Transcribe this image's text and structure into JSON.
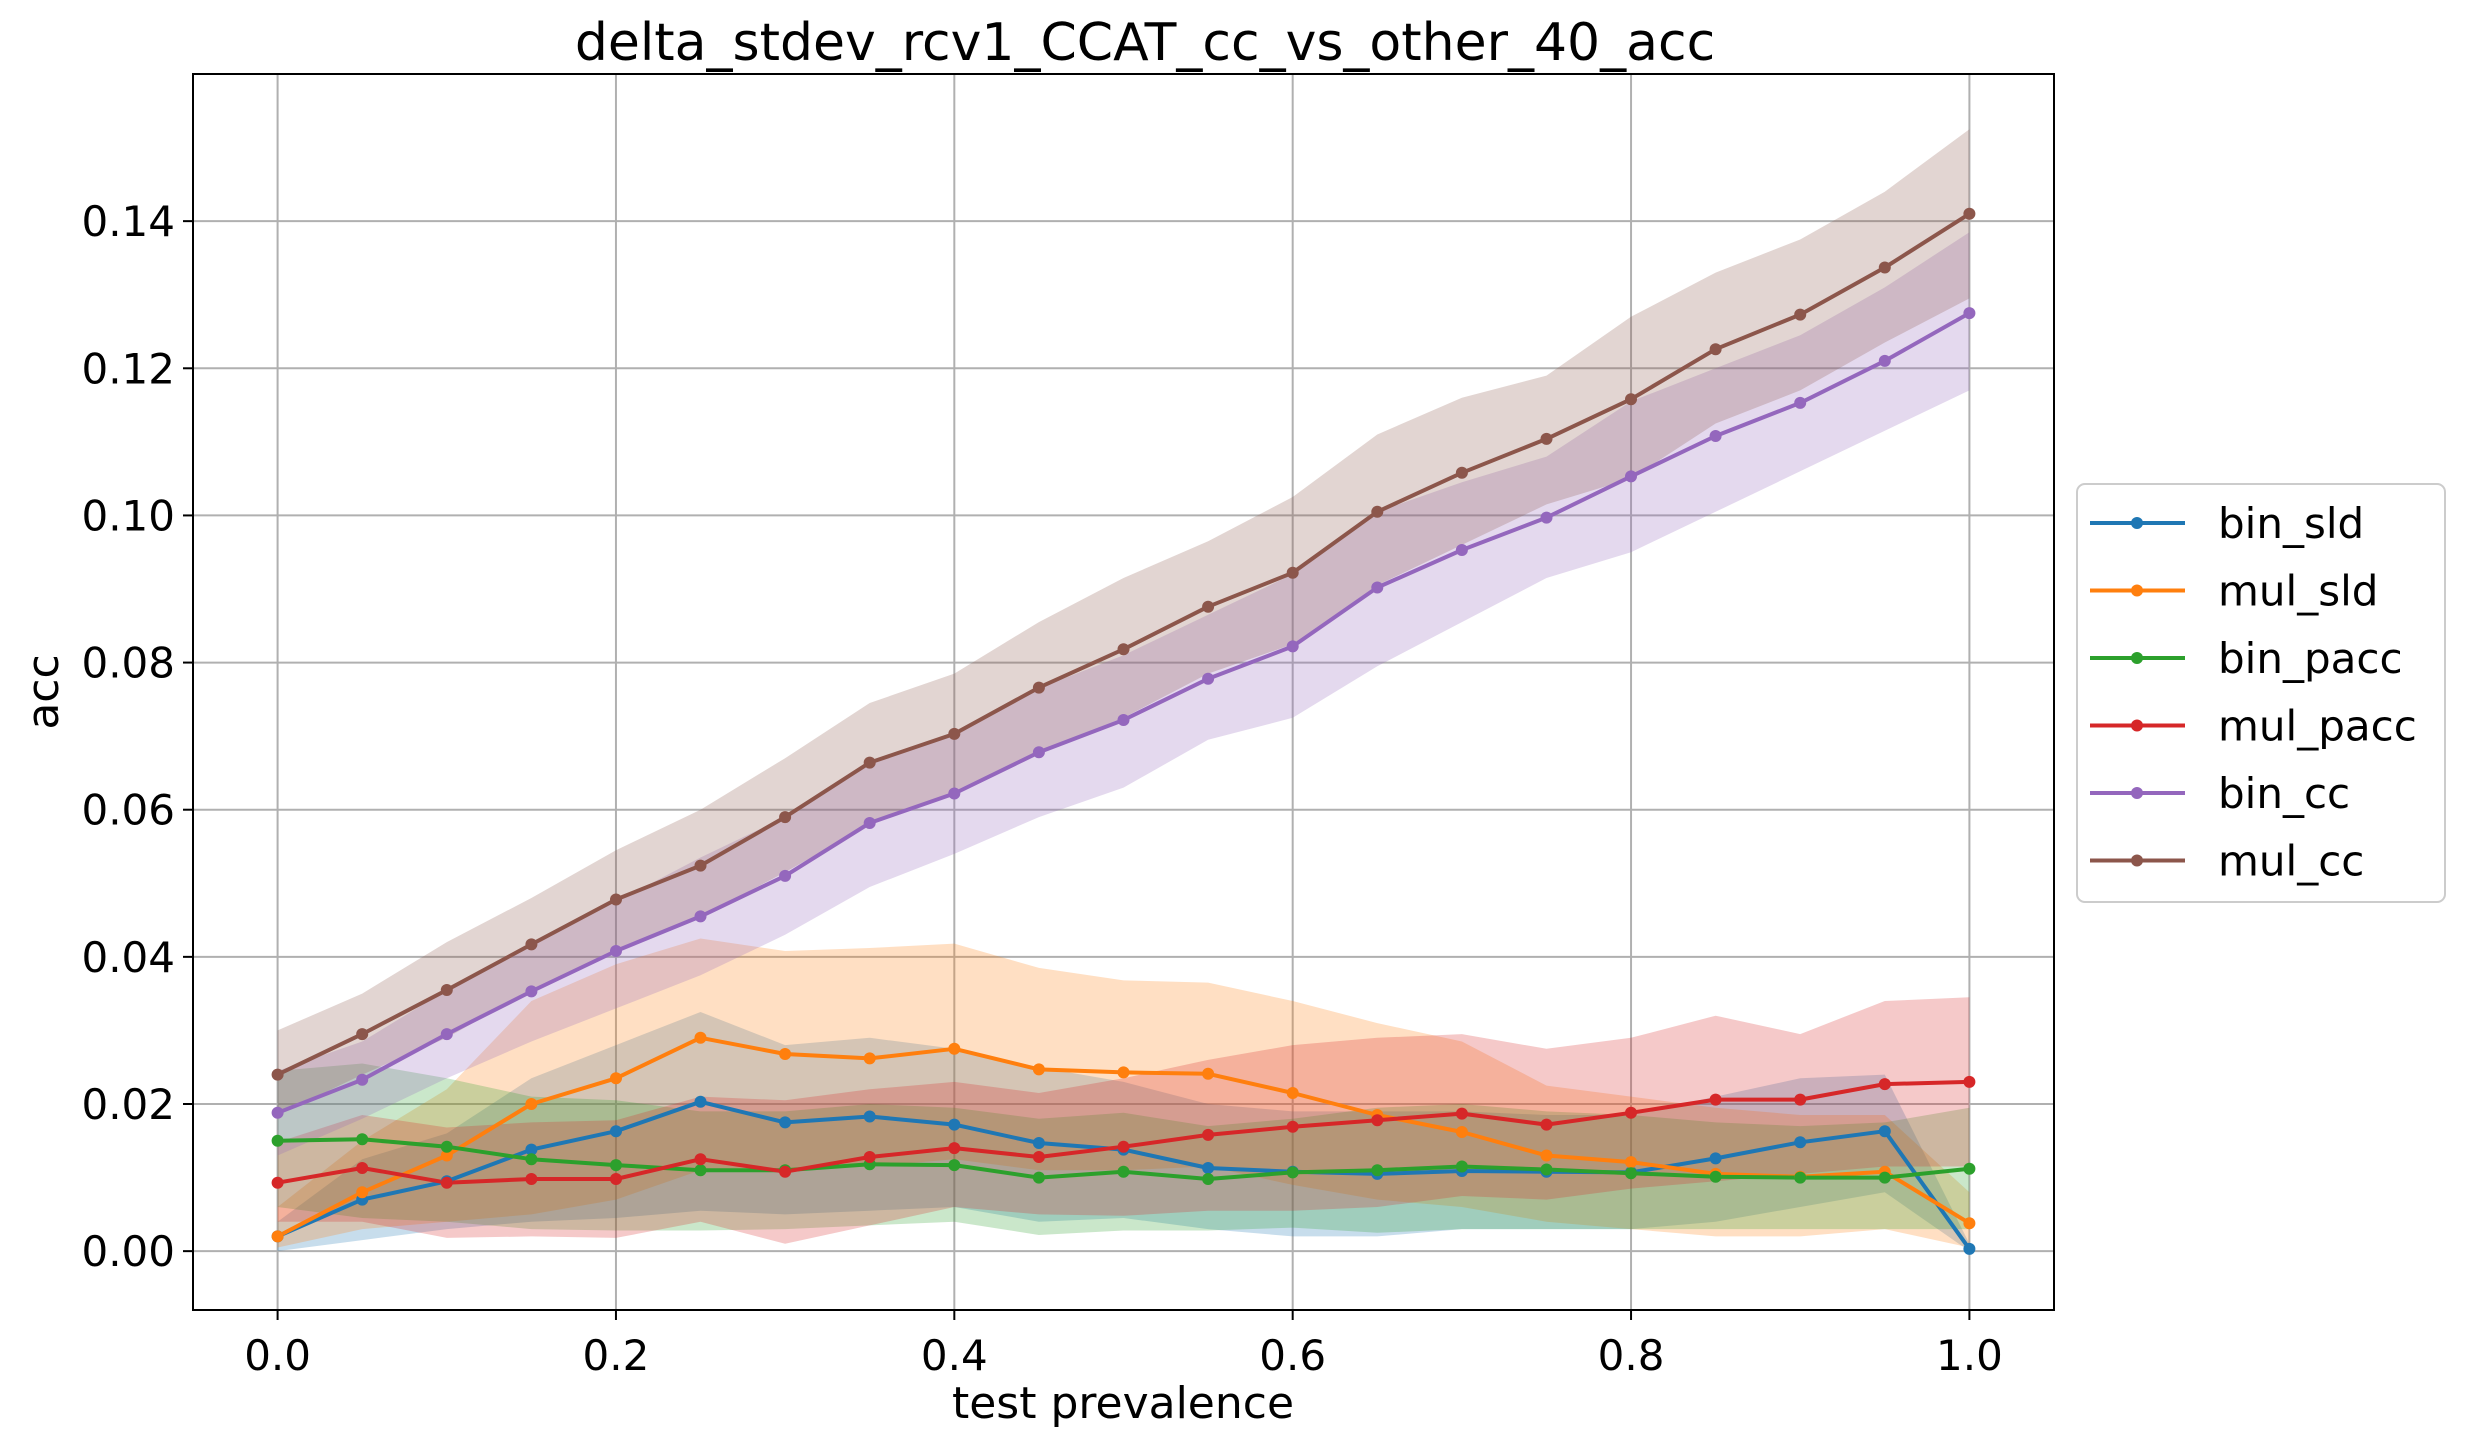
{
  "chart_data": {
    "type": "line",
    "title": "delta_stdev_rcv1_CCAT_cc_vs_other_40_acc",
    "xlabel": "test prevalence",
    "ylabel": "acc",
    "xlim": [
      -0.05,
      1.05
    ],
    "ylim": [
      -0.008,
      0.16
    ],
    "xticks": [
      0.0,
      0.2,
      0.4,
      0.6,
      0.8,
      1.0
    ],
    "xtick_labels": [
      "0.0",
      "0.2",
      "0.4",
      "0.6",
      "0.8",
      "1.0"
    ],
    "yticks": [
      0.0,
      0.02,
      0.04,
      0.06,
      0.08,
      0.1,
      0.12,
      0.14
    ],
    "ytick_labels": [
      "0.00",
      "0.02",
      "0.04",
      "0.06",
      "0.08",
      "0.10",
      "0.12",
      "0.14"
    ],
    "grid": true,
    "legend_position": "right, outside plot",
    "x": [
      0.0,
      0.05,
      0.1,
      0.15,
      0.2,
      0.25,
      0.3,
      0.35,
      0.4,
      0.45,
      0.5,
      0.55,
      0.6,
      0.65,
      0.7,
      0.75,
      0.8,
      0.85,
      0.9,
      0.95,
      1.0
    ],
    "series": [
      {
        "name": "bin_sld",
        "color": "#1f77b4",
        "values": [
          0.002,
          0.007,
          0.0095,
          0.0138,
          0.0163,
          0.0203,
          0.0175,
          0.0183,
          0.0172,
          0.0147,
          0.0138,
          0.0113,
          0.0108,
          0.0105,
          0.0109,
          0.0108,
          0.0107,
          0.0126,
          0.0148,
          0.0163,
          0.0003
        ],
        "band_low": [
          0.0,
          0.0015,
          0.003,
          0.004,
          0.0045,
          0.0055,
          0.005,
          0.0055,
          0.006,
          0.004,
          0.0045,
          0.003,
          0.002,
          0.002,
          0.003,
          0.003,
          0.003,
          0.004,
          0.006,
          0.008,
          0.0
        ],
        "band_high": [
          0.004,
          0.0125,
          0.016,
          0.0235,
          0.028,
          0.0325,
          0.028,
          0.029,
          0.0275,
          0.025,
          0.023,
          0.02,
          0.019,
          0.019,
          0.019,
          0.0185,
          0.0185,
          0.021,
          0.0235,
          0.024,
          0.001
        ]
      },
      {
        "name": "mul_sld",
        "color": "#ff7f0e",
        "values": [
          0.002,
          0.008,
          0.013,
          0.02,
          0.0235,
          0.029,
          0.0268,
          0.0262,
          0.0275,
          0.0247,
          0.0243,
          0.0241,
          0.0215,
          0.0185,
          0.0162,
          0.013,
          0.0121,
          0.0105,
          0.0101,
          0.0108,
          0.0038
        ],
        "band_low": [
          0.0005,
          0.003,
          0.004,
          0.005,
          0.007,
          0.011,
          0.011,
          0.0115,
          0.0125,
          0.011,
          0.011,
          0.0115,
          0.009,
          0.007,
          0.006,
          0.004,
          0.003,
          0.002,
          0.002,
          0.003,
          0.0005
        ],
        "band_high": [
          0.006,
          0.015,
          0.022,
          0.034,
          0.039,
          0.0425,
          0.0408,
          0.0412,
          0.0418,
          0.0385,
          0.0368,
          0.0365,
          0.034,
          0.031,
          0.0285,
          0.0225,
          0.021,
          0.0195,
          0.0185,
          0.0185,
          0.008
        ]
      },
      {
        "name": "bin_pacc",
        "color": "#2ca02c",
        "values": [
          0.015,
          0.0152,
          0.0142,
          0.0125,
          0.0117,
          0.011,
          0.011,
          0.0118,
          0.0117,
          0.01,
          0.0108,
          0.0098,
          0.0107,
          0.011,
          0.0115,
          0.0111,
          0.0106,
          0.0101,
          0.01,
          0.01,
          0.0112
        ],
        "band_low": [
          0.006,
          0.0045,
          0.004,
          0.003,
          0.0028,
          0.0028,
          0.003,
          0.0035,
          0.004,
          0.0022,
          0.0028,
          0.0028,
          0.0032,
          0.0025,
          0.003,
          0.003,
          0.003,
          0.003,
          0.003,
          0.003,
          0.003
        ],
        "band_high": [
          0.0245,
          0.0255,
          0.0235,
          0.021,
          0.0205,
          0.019,
          0.019,
          0.02,
          0.0195,
          0.018,
          0.0188,
          0.017,
          0.018,
          0.0195,
          0.02,
          0.019,
          0.0185,
          0.0175,
          0.017,
          0.0175,
          0.0195
        ]
      },
      {
        "name": "mul_pacc",
        "color": "#d62728",
        "values": [
          0.0093,
          0.0113,
          0.0093,
          0.0098,
          0.0098,
          0.0125,
          0.0108,
          0.0128,
          0.014,
          0.0128,
          0.0142,
          0.0158,
          0.0169,
          0.0178,
          0.0187,
          0.0172,
          0.0188,
          0.0206,
          0.0206,
          0.0227,
          0.023
        ],
        "band_low": [
          0.004,
          0.004,
          0.0018,
          0.002,
          0.0018,
          0.004,
          0.001,
          0.0035,
          0.006,
          0.005,
          0.0048,
          0.0055,
          0.0055,
          0.006,
          0.0075,
          0.007,
          0.0085,
          0.0095,
          0.0105,
          0.0115,
          0.0115
        ],
        "band_high": [
          0.0148,
          0.0185,
          0.0168,
          0.0175,
          0.0178,
          0.021,
          0.0205,
          0.022,
          0.023,
          0.0215,
          0.0235,
          0.026,
          0.028,
          0.029,
          0.0295,
          0.0275,
          0.029,
          0.032,
          0.0295,
          0.034,
          0.0345
        ]
      },
      {
        "name": "bin_cc",
        "color": "#9467bd",
        "values": [
          0.0188,
          0.0233,
          0.0295,
          0.0353,
          0.0408,
          0.0455,
          0.051,
          0.0582,
          0.0622,
          0.0678,
          0.0722,
          0.0778,
          0.0822,
          0.0902,
          0.0953,
          0.0997,
          0.1053,
          0.1108,
          0.1153,
          0.121,
          0.1275
        ],
        "band_low": [
          0.013,
          0.018,
          0.0235,
          0.0285,
          0.033,
          0.0375,
          0.043,
          0.0495,
          0.054,
          0.059,
          0.063,
          0.0695,
          0.0725,
          0.0795,
          0.0855,
          0.0915,
          0.095,
          0.1005,
          0.106,
          0.1115,
          0.117
        ],
        "band_high": [
          0.0245,
          0.0285,
          0.0355,
          0.042,
          0.0475,
          0.0535,
          0.059,
          0.0665,
          0.0705,
          0.0765,
          0.081,
          0.0865,
          0.092,
          0.1005,
          0.1045,
          0.108,
          0.1155,
          0.12,
          0.1245,
          0.131,
          0.1385
        ]
      },
      {
        "name": "mul_cc",
        "color": "#8c564b",
        "values": [
          0.024,
          0.0295,
          0.0355,
          0.0417,
          0.0478,
          0.0524,
          0.059,
          0.0664,
          0.0703,
          0.0766,
          0.0818,
          0.0876,
          0.0922,
          0.1005,
          0.1058,
          0.1104,
          0.1158,
          0.1226,
          0.1273,
          0.1337,
          0.141
        ],
        "band_low": [
          0.0185,
          0.024,
          0.029,
          0.0355,
          0.041,
          0.0455,
          0.0515,
          0.058,
          0.0625,
          0.068,
          0.0725,
          0.0785,
          0.0825,
          0.0905,
          0.096,
          0.1015,
          0.105,
          0.1125,
          0.117,
          0.1235,
          0.1295
        ],
        "band_high": [
          0.03,
          0.035,
          0.042,
          0.048,
          0.0545,
          0.06,
          0.067,
          0.0745,
          0.0785,
          0.0855,
          0.0915,
          0.0965,
          0.1025,
          0.111,
          0.116,
          0.119,
          0.127,
          0.133,
          0.1375,
          0.144,
          0.1525
        ]
      }
    ]
  }
}
